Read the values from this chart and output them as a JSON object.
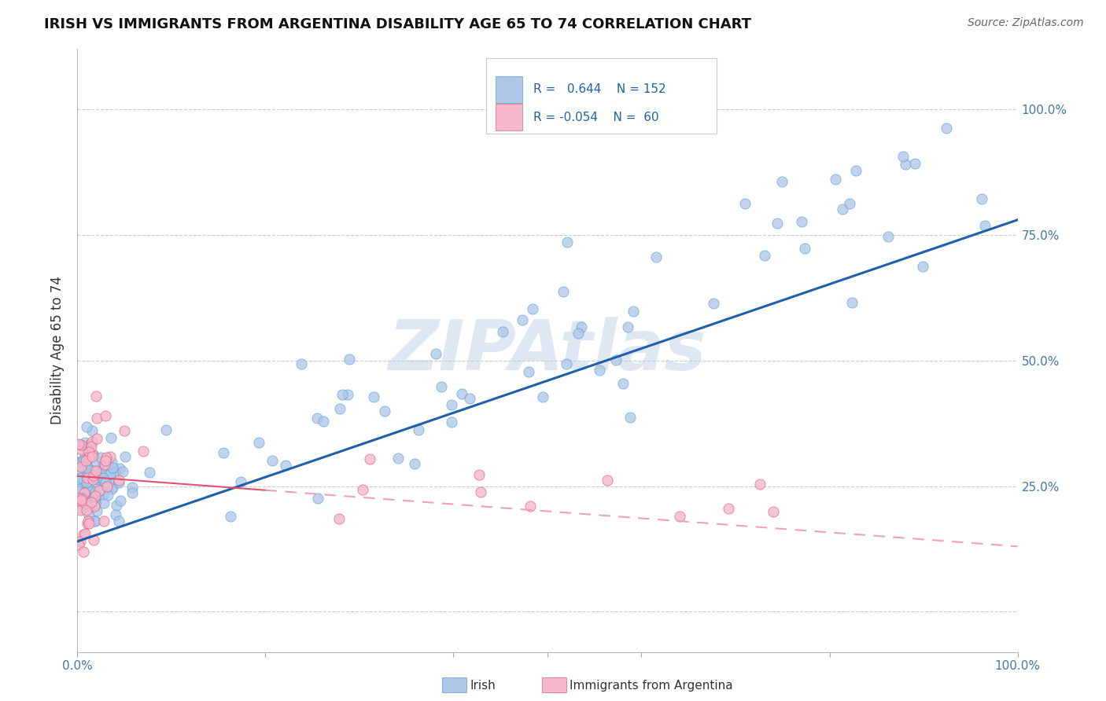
{
  "title": "IRISH VS IMMIGRANTS FROM ARGENTINA DISABILITY AGE 65 TO 74 CORRELATION CHART",
  "source": "Source: ZipAtlas.com",
  "ylabel": "Disability Age 65 to 74",
  "xlim": [
    0.0,
    1.0
  ],
  "ylim": [
    -0.08,
    1.12
  ],
  "irish_R": 0.644,
  "irish_N": 152,
  "argentina_R": -0.054,
  "argentina_N": 60,
  "irish_color": "#aec6e8",
  "irish_edge": "#5a9fd4",
  "argentina_color": "#f5b8cc",
  "argentina_edge": "#e0607a",
  "trend_irish_color": "#2060a8",
  "trend_argentina_color": "#e05070",
  "trend_arg_dash_color": "#f0a0b8",
  "watermark": "ZIPAtlas",
  "right_ytick_labels": [
    "25.0%",
    "50.0%",
    "75.0%",
    "100.0%"
  ],
  "right_ytick_values": [
    0.25,
    0.5,
    0.75,
    1.0
  ],
  "legend_irish_label": "R =   0.644    N = 152",
  "legend_arg_label": "R = -0.054    N =  60"
}
